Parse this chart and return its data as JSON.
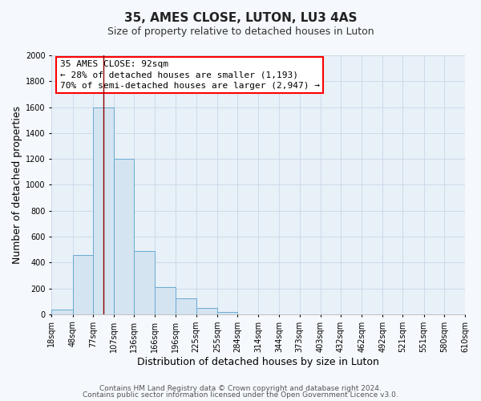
{
  "title": "35, AMES CLOSE, LUTON, LU3 4AS",
  "subtitle": "Size of property relative to detached houses in Luton",
  "xlabel": "Distribution of detached houses by size in Luton",
  "ylabel": "Number of detached properties",
  "bin_edges": [
    18,
    48,
    77,
    107,
    136,
    166,
    196,
    225,
    255,
    284,
    314,
    344,
    373,
    403,
    432,
    462,
    492,
    521,
    551,
    580,
    610
  ],
  "bar_heights": [
    35,
    460,
    1600,
    1200,
    490,
    210,
    120,
    50,
    20,
    0,
    0,
    0,
    0,
    0,
    0,
    0,
    0,
    0,
    0,
    0
  ],
  "bar_color": "#d4e4f0",
  "bar_edge_color": "#6aaad4",
  "red_line_x": 92,
  "annotation_line1": "35 AMES CLOSE: 92sqm",
  "annotation_line2": "← 28% of detached houses are smaller (1,193)",
  "annotation_line3": "70% of semi-detached houses are larger (2,947) →",
  "ylim": [
    0,
    2000
  ],
  "yticks": [
    0,
    200,
    400,
    600,
    800,
    1000,
    1200,
    1400,
    1600,
    1800,
    2000
  ],
  "tick_labels": [
    "18sqm",
    "48sqm",
    "77sqm",
    "107sqm",
    "136sqm",
    "166sqm",
    "196sqm",
    "225sqm",
    "255sqm",
    "284sqm",
    "314sqm",
    "344sqm",
    "373sqm",
    "403sqm",
    "432sqm",
    "462sqm",
    "492sqm",
    "521sqm",
    "551sqm",
    "580sqm",
    "610sqm"
  ],
  "footer_line1": "Contains HM Land Registry data © Crown copyright and database right 2024.",
  "footer_line2": "Contains public sector information licensed under the Open Government Licence v3.0.",
  "plot_bg_color": "#e8f0f8",
  "fig_bg_color": "#f5f8fc",
  "grid_color": "#c8d8e8",
  "title_fontsize": 11,
  "subtitle_fontsize": 9,
  "axis_label_fontsize": 9,
  "tick_fontsize": 7,
  "footer_fontsize": 6.5,
  "annot_fontsize": 8
}
